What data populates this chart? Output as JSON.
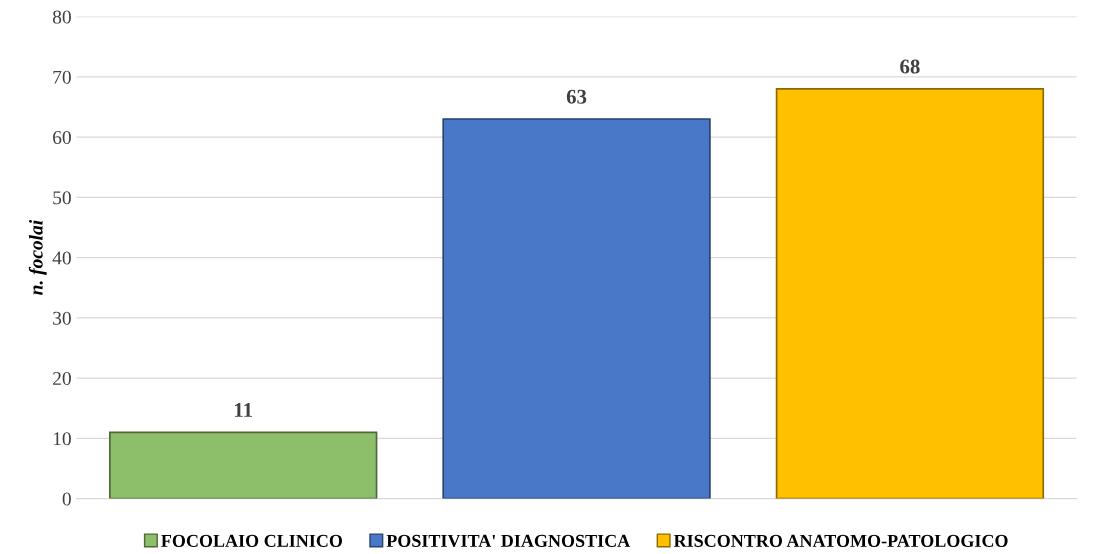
{
  "chart_data": {
    "type": "bar",
    "ylabel": "n. focolai",
    "categories": [
      null,
      null,
      null
    ],
    "series": [
      {
        "name": "FOCOLAIO CLINICO",
        "color": "#8dbf6a",
        "values": [
          11,
          null,
          null
        ]
      },
      {
        "name": "POSITIVITA' DIAGNOSTICA",
        "color": "#4a78c8",
        "values": [
          null,
          63,
          null
        ]
      },
      {
        "name": "RISCONTRO ANATOMO-PATOLOGICO",
        "color": "#ffc000",
        "values": [
          null,
          null,
          68
        ]
      }
    ],
    "ylim": [
      0,
      80
    ],
    "yticks": [
      0,
      10,
      20,
      30,
      40,
      50,
      60,
      70,
      80
    ],
    "grid": "y",
    "legend": "bottom",
    "data_labels": true
  }
}
